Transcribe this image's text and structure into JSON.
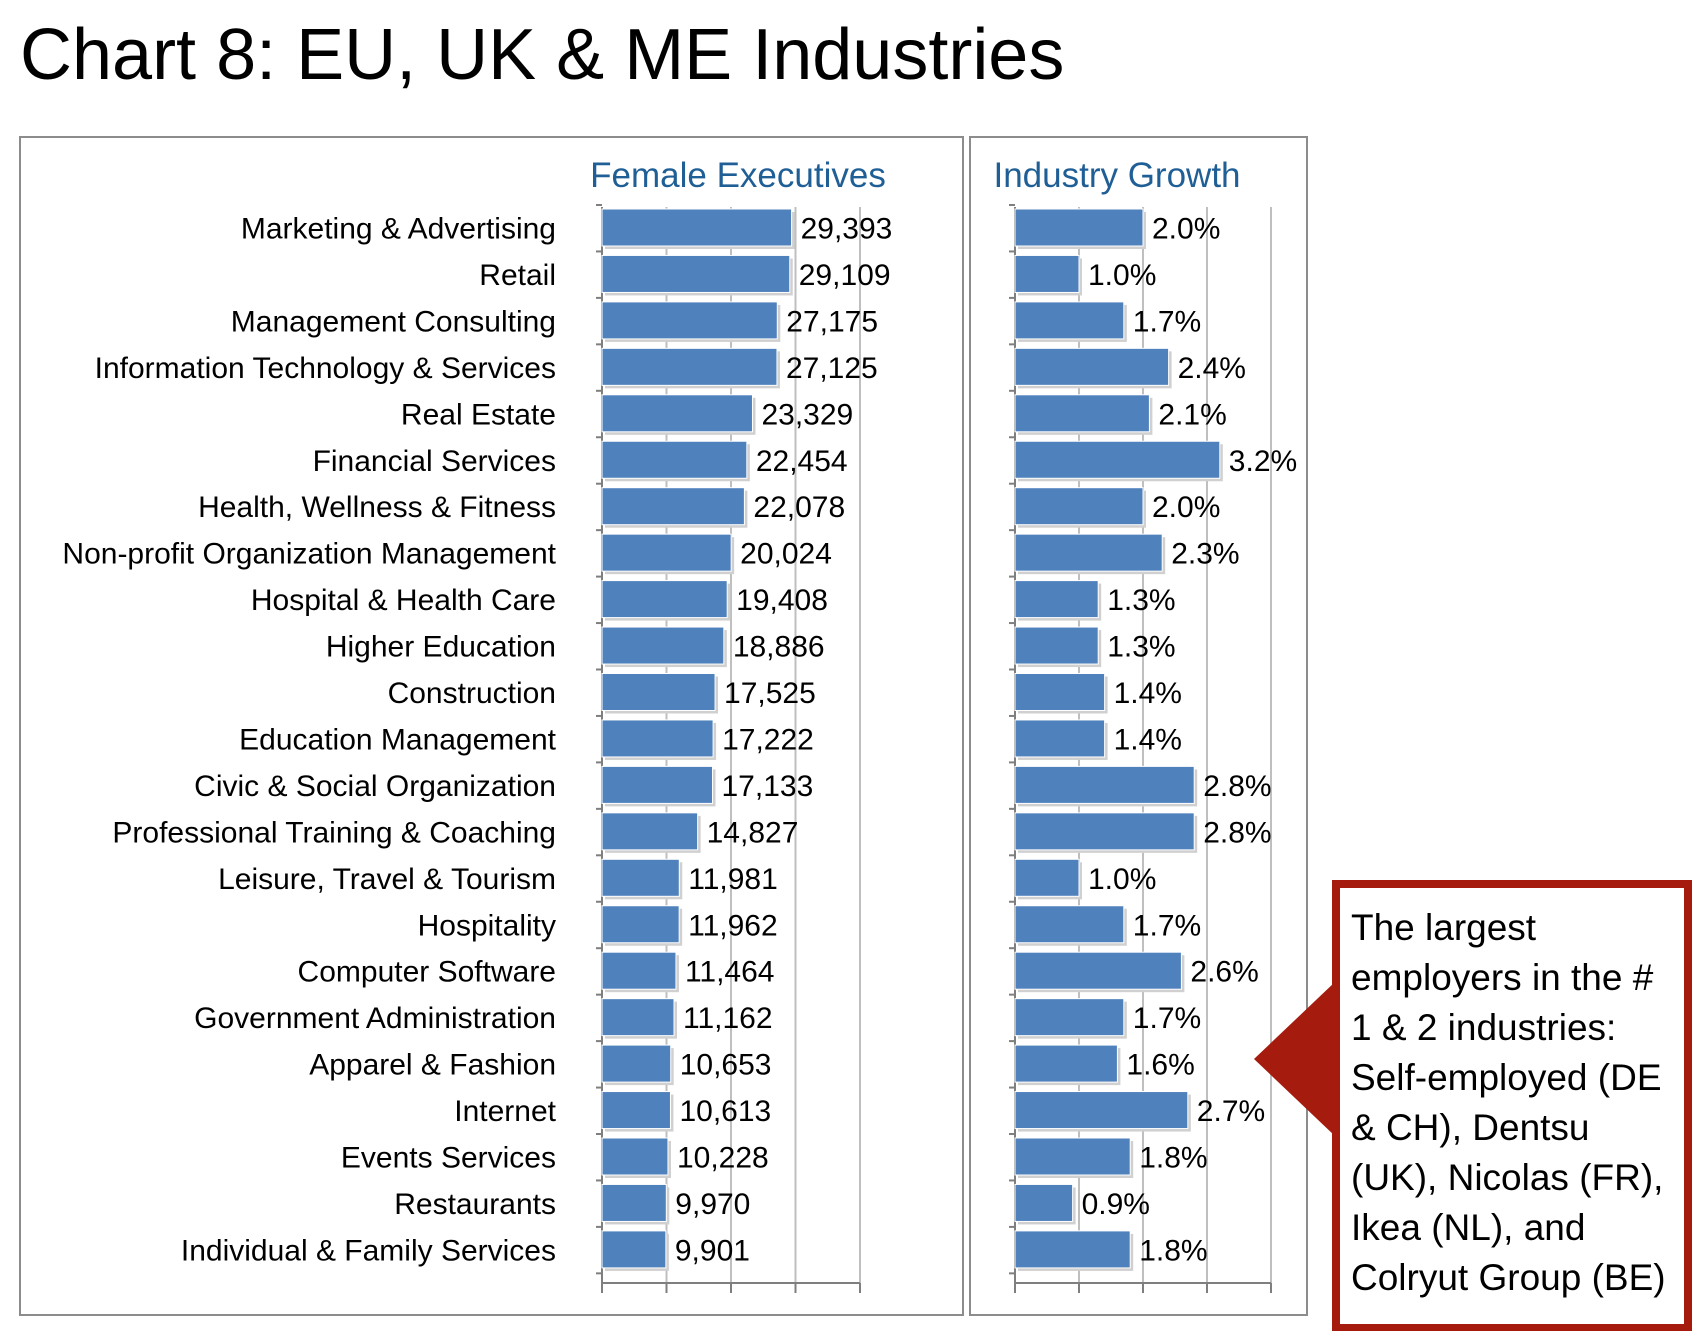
{
  "title": "Chart 8: EU, UK & ME Industries",
  "callout": {
    "text": "The largest employers in the # 1 & 2 industries: Self-employed (DE & CH), Dentsu (UK), Nicolas (FR), Ikea (NL), and Colryut Group (BE)",
    "border_color": "#a51c0f"
  },
  "chart_data": [
    {
      "type": "bar",
      "orientation": "horizontal",
      "title": "Female Executives",
      "categories": [
        "Marketing & Advertising",
        "Retail",
        "Management Consulting",
        "Information Technology & Services",
        "Real Estate",
        "Financial Services",
        "Health, Wellness & Fitness",
        "Non-profit Organization Management",
        "Hospital & Health Care",
        "Higher Education",
        "Construction",
        "Education Management",
        "Civic & Social Organization",
        "Professional Training & Coaching",
        "Leisure, Travel & Tourism",
        "Hospitality",
        "Computer Software",
        "Government Administration",
        "Apparel & Fashion",
        "Internet",
        "Events Services",
        "Restaurants",
        "Individual & Family Services"
      ],
      "values": [
        29393,
        29109,
        27175,
        27125,
        23329,
        22454,
        22078,
        20024,
        19408,
        18886,
        17525,
        17222,
        17133,
        14827,
        11981,
        11962,
        11464,
        11162,
        10653,
        10613,
        10228,
        9970,
        9901
      ],
      "labels": [
        "29,393",
        "29,109",
        "27,175",
        "27,125",
        "23,329",
        "22,454",
        "22,078",
        "20,024",
        "19,408",
        "18,886",
        "17,525",
        "17,222",
        "17,133",
        "14,827",
        "11,981",
        "11,962",
        "11,464",
        "11,162",
        "10,653",
        "10,613",
        "10,228",
        "9,970",
        "9,901"
      ],
      "xlim": [
        0,
        40000
      ],
      "grid": true,
      "bar_color": "#4f81bd",
      "title_color": "#1f5f96"
    },
    {
      "type": "bar",
      "orientation": "horizontal",
      "title": "Industry Growth",
      "values": [
        2.0,
        1.0,
        1.7,
        2.4,
        2.1,
        3.2,
        2.0,
        2.3,
        1.3,
        1.3,
        1.4,
        1.4,
        2.8,
        2.8,
        1.0,
        1.7,
        2.6,
        1.7,
        1.6,
        2.7,
        1.8,
        0.9,
        1.8
      ],
      "labels": [
        "2.0%",
        "1.0%",
        "1.7%",
        "2.4%",
        "2.1%",
        "3.2%",
        "2.0%",
        "2.3%",
        "1.3%",
        "1.3%",
        "1.4%",
        "1.4%",
        "2.8%",
        "2.8%",
        "1.0%",
        "1.7%",
        "2.6%",
        "1.7%",
        "1.6%",
        "2.7%",
        "1.8%",
        "0.9%",
        "1.8%"
      ],
      "xlim": [
        0,
        4.0
      ],
      "grid": true,
      "bar_color": "#4f81bd",
      "title_color": "#1f5f96"
    }
  ]
}
